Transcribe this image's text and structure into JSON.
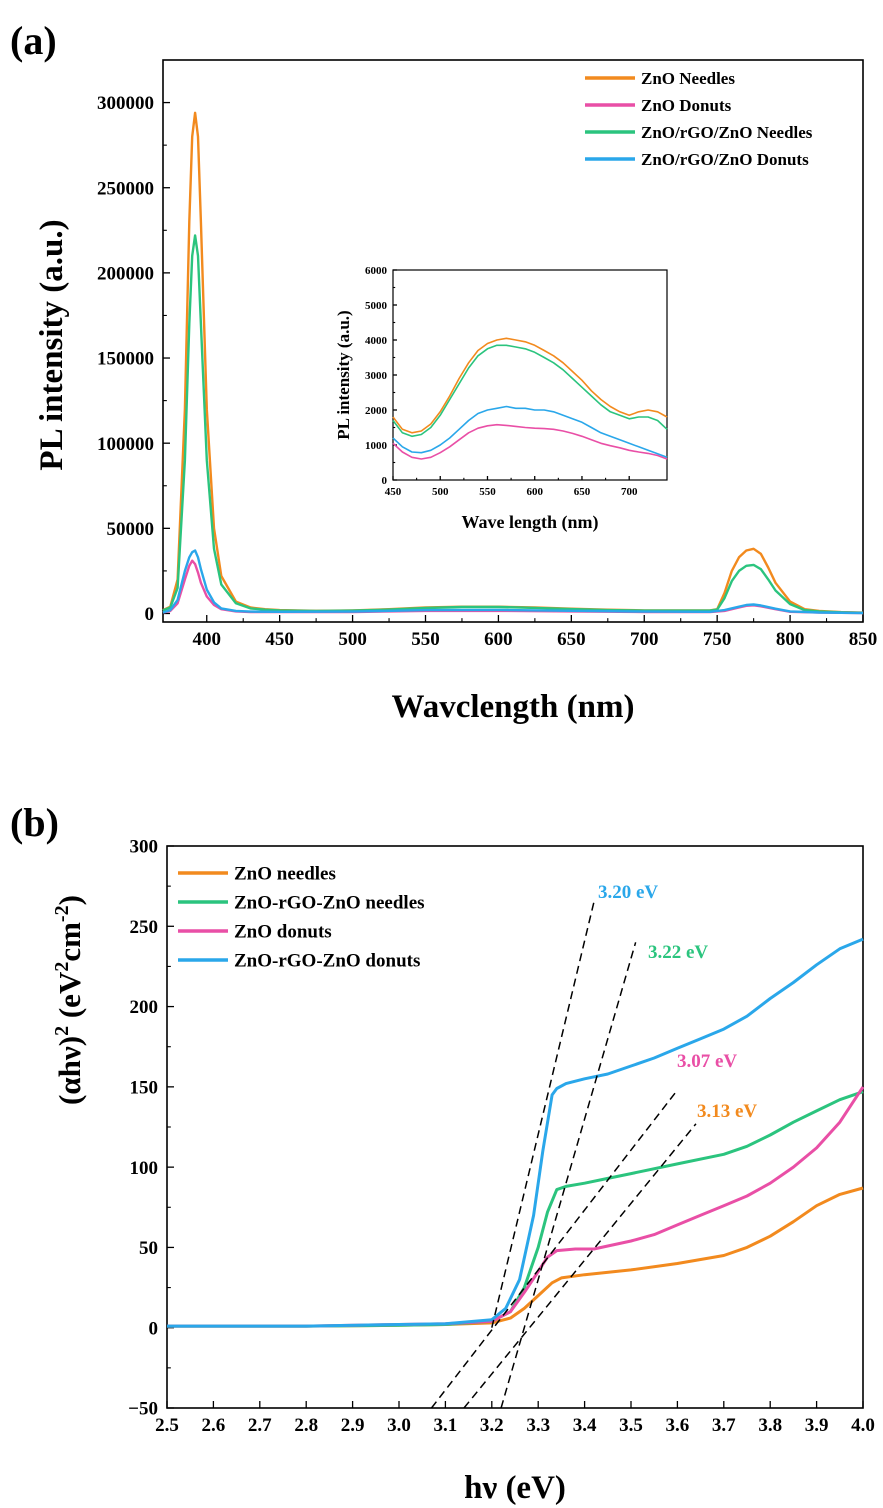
{
  "panel_a": {
    "label": "(a)",
    "chart_data": {
      "type": "line",
      "xlabel": "Wavclength (nm)",
      "ylabel": "PL intensity (a.u.)",
      "xlim": [
        370,
        850
      ],
      "ylim": [
        -5000,
        325000
      ],
      "xticks": [
        400,
        450,
        500,
        550,
        600,
        650,
        700,
        750,
        800,
        850
      ],
      "yticks": [
        0,
        50000,
        100000,
        150000,
        200000,
        250000,
        300000
      ],
      "legend_position": "top-right",
      "series": [
        {
          "name": "ZnO Needles",
          "color": "#f28a1e",
          "x": [
            370,
            375,
            380,
            385,
            388,
            390,
            392,
            394,
            396,
            400,
            405,
            410,
            420,
            430,
            440,
            450,
            475,
            500,
            525,
            550,
            575,
            600,
            625,
            650,
            675,
            700,
            725,
            745,
            750,
            755,
            760,
            765,
            770,
            775,
            780,
            785,
            790,
            800,
            810,
            820,
            835,
            850
          ],
          "y": [
            2000,
            4000,
            20000,
            120000,
            230000,
            280000,
            294000,
            280000,
            230000,
            120000,
            50000,
            22000,
            7000,
            3500,
            2500,
            2000,
            1600,
            1800,
            2500,
            3500,
            4000,
            4000,
            3500,
            2800,
            2200,
            1800,
            1800,
            1800,
            2500,
            12000,
            25000,
            33000,
            37000,
            38000,
            35000,
            27000,
            18000,
            7000,
            2500,
            1500,
            800,
            500
          ]
        },
        {
          "name": "ZnO Donuts",
          "color": "#e94fa6",
          "x": [
            370,
            375,
            380,
            385,
            388,
            390,
            392,
            394,
            396,
            400,
            405,
            410,
            420,
            430,
            450,
            500,
            550,
            600,
            650,
            700,
            745,
            755,
            765,
            770,
            775,
            780,
            790,
            800,
            820,
            850
          ],
          "y": [
            500,
            1500,
            6000,
            20000,
            28000,
            31000,
            29000,
            24000,
            18000,
            10000,
            5000,
            2500,
            1200,
            900,
            800,
            900,
            1500,
            1500,
            1200,
            900,
            800,
            1500,
            3500,
            4500,
            4800,
            4200,
            2500,
            1000,
            500,
            300
          ]
        },
        {
          "name": "ZnO/rGO/ZnO Needles",
          "color": "#2bc47e",
          "x": [
            370,
            375,
            380,
            385,
            388,
            390,
            392,
            394,
            396,
            400,
            405,
            410,
            420,
            430,
            440,
            450,
            475,
            500,
            525,
            550,
            575,
            600,
            625,
            650,
            675,
            700,
            725,
            745,
            750,
            755,
            760,
            765,
            770,
            775,
            780,
            785,
            790,
            800,
            810,
            820,
            835,
            850
          ],
          "y": [
            1800,
            3500,
            15000,
            90000,
            170000,
            210000,
            222000,
            210000,
            170000,
            90000,
            38000,
            17000,
            6000,
            3000,
            2200,
            1800,
            1500,
            1700,
            2300,
            3200,
            3800,
            3800,
            3300,
            2600,
            2000,
            1700,
            1700,
            1700,
            2300,
            9000,
            19000,
            25000,
            28000,
            28500,
            26000,
            20000,
            13500,
            5500,
            2000,
            1200,
            700,
            400
          ]
        },
        {
          "name": "ZnO/rGO/ZnO Donuts",
          "color": "#2aa7ea",
          "x": [
            370,
            375,
            380,
            385,
            388,
            390,
            392,
            394,
            396,
            400,
            405,
            410,
            420,
            430,
            450,
            500,
            550,
            600,
            650,
            700,
            745,
            755,
            765,
            770,
            775,
            780,
            790,
            800,
            820,
            850
          ],
          "y": [
            600,
            2000,
            8000,
            25000,
            33000,
            36000,
            37000,
            33000,
            26000,
            14000,
            6500,
            3000,
            1500,
            1100,
            1000,
            1100,
            2000,
            2100,
            1600,
            1100,
            1000,
            2000,
            4000,
            5000,
            5300,
            4700,
            2800,
            1200,
            600,
            300
          ]
        }
      ]
    },
    "inset": {
      "chart_data": {
        "type": "line",
        "xlabel": "Wave length (nm)",
        "ylabel": "PL intensity (a.u.)",
        "xlim": [
          450,
          740
        ],
        "ylim": [
          0,
          6000
        ],
        "xticks": [
          450,
          500,
          550,
          600,
          650,
          700
        ],
        "yticks": [
          0,
          1000,
          2000,
          3000,
          4000,
          5000,
          6000
        ],
        "series": [
          {
            "name": "ZnO Needles",
            "color": "#f28a1e",
            "x": [
              450,
              460,
              470,
              480,
              490,
              500,
              510,
              520,
              530,
              540,
              550,
              560,
              570,
              580,
              590,
              600,
              610,
              620,
              630,
              640,
              650,
              660,
              670,
              680,
              690,
              700,
              710,
              720,
              730,
              740
            ],
            "y": [
              1800,
              1450,
              1350,
              1400,
              1600,
              1950,
              2400,
              2900,
              3350,
              3700,
              3900,
              4000,
              4050,
              4000,
              3950,
              3850,
              3700,
              3550,
              3350,
              3100,
              2850,
              2550,
              2300,
              2100,
              1950,
              1850,
              1950,
              2000,
              1950,
              1800
            ]
          },
          {
            "name": "ZnO Donuts",
            "color": "#e94fa6",
            "x": [
              450,
              460,
              470,
              480,
              490,
              500,
              510,
              520,
              530,
              540,
              550,
              560,
              570,
              580,
              590,
              600,
              610,
              620,
              630,
              640,
              650,
              660,
              670,
              680,
              690,
              700,
              710,
              720,
              730,
              740
            ],
            "y": [
              1050,
              800,
              650,
              600,
              650,
              780,
              950,
              1150,
              1350,
              1480,
              1550,
              1580,
              1560,
              1530,
              1500,
              1480,
              1470,
              1450,
              1400,
              1330,
              1250,
              1150,
              1050,
              980,
              920,
              850,
              800,
              760,
              700,
              600
            ]
          },
          {
            "name": "ZnO/rGO/ZnO Needles",
            "color": "#2bc47e",
            "x": [
              450,
              460,
              470,
              480,
              490,
              500,
              510,
              520,
              530,
              540,
              550,
              560,
              570,
              580,
              590,
              600,
              610,
              620,
              630,
              640,
              650,
              660,
              670,
              680,
              690,
              700,
              710,
              720,
              730,
              740
            ],
            "y": [
              1700,
              1350,
              1250,
              1300,
              1500,
              1850,
              2300,
              2750,
              3200,
              3550,
              3750,
              3850,
              3850,
              3800,
              3750,
              3650,
              3500,
              3350,
              3150,
              2900,
              2650,
              2400,
              2150,
              1950,
              1850,
              1750,
              1800,
              1800,
              1700,
              1450
            ]
          },
          {
            "name": "ZnO/rGO/ZnO Donuts",
            "color": "#2aa7ea",
            "x": [
              450,
              460,
              470,
              480,
              490,
              500,
              510,
              520,
              530,
              540,
              550,
              560,
              570,
              580,
              590,
              600,
              610,
              620,
              630,
              640,
              650,
              660,
              670,
              680,
              690,
              700,
              710,
              720,
              730,
              740
            ],
            "y": [
              1200,
              950,
              800,
              780,
              850,
              1000,
              1200,
              1450,
              1700,
              1900,
              2000,
              2050,
              2100,
              2050,
              2050,
              2000,
              2000,
              1950,
              1850,
              1750,
              1650,
              1500,
              1350,
              1250,
              1150,
              1050,
              950,
              850,
              750,
              650
            ]
          }
        ]
      }
    }
  },
  "panel_b": {
    "label": "(b)",
    "chart_data": {
      "type": "line",
      "xlabel": "hν (eV)",
      "ylabel_main": "(αhν)",
      "ylabel_sup1": "2",
      "ylabel_mid": " (eV",
      "ylabel_sup2": "2",
      "ylabel_cm": "cm",
      "ylabel_sup3": "-2",
      "ylabel_end": ")",
      "xlim": [
        2.5,
        4.0
      ],
      "ylim": [
        -50,
        300
      ],
      "xticks": [
        2.5,
        2.6,
        2.7,
        2.8,
        2.9,
        3.0,
        3.1,
        3.2,
        3.3,
        3.4,
        3.5,
        3.6,
        3.7,
        3.8,
        3.9,
        4.0
      ],
      "yticks": [
        -50,
        0,
        50,
        100,
        150,
        200,
        250,
        300
      ],
      "legend_position": "top-left",
      "series": [
        {
          "name": "ZnO needles",
          "color": "#f28a1e",
          "x": [
            2.5,
            2.8,
            3.0,
            3.1,
            3.2,
            3.24,
            3.27,
            3.3,
            3.33,
            3.35,
            3.4,
            3.5,
            3.6,
            3.7,
            3.75,
            3.8,
            3.85,
            3.9,
            3.95,
            4.0
          ],
          "y": [
            1,
            1,
            1.5,
            2,
            3,
            6,
            12,
            20,
            28,
            31,
            33,
            36,
            40,
            45,
            50,
            57,
            66,
            76,
            83,
            87
          ]
        },
        {
          "name": "ZnO-rGO-ZnO needles",
          "color": "#2bc47e",
          "x": [
            2.5,
            2.8,
            3.0,
            3.1,
            3.2,
            3.24,
            3.27,
            3.3,
            3.32,
            3.34,
            3.36,
            3.4,
            3.45,
            3.5,
            3.6,
            3.7,
            3.75,
            3.8,
            3.85,
            3.9,
            3.95,
            4.0
          ],
          "y": [
            1,
            1,
            1.5,
            2,
            4,
            10,
            25,
            50,
            72,
            86,
            88,
            90,
            93,
            96,
            102,
            108,
            113,
            120,
            128,
            135,
            142,
            147
          ]
        },
        {
          "name": "ZnO donuts",
          "color": "#e94fa6",
          "x": [
            2.5,
            2.8,
            3.0,
            3.1,
            3.2,
            3.24,
            3.27,
            3.3,
            3.32,
            3.34,
            3.38,
            3.42,
            3.5,
            3.55,
            3.6,
            3.65,
            3.7,
            3.75,
            3.8,
            3.85,
            3.9,
            3.95,
            4.0
          ],
          "y": [
            1,
            1,
            2,
            2.5,
            4,
            10,
            22,
            35,
            44,
            48,
            49,
            49,
            54,
            58,
            64,
            70,
            76,
            82,
            90,
            100,
            112,
            128,
            150
          ]
        },
        {
          "name": "ZnO-rGO-ZnO donuts",
          "color": "#2aa7ea",
          "x": [
            2.5,
            2.8,
            3.0,
            3.1,
            3.2,
            3.23,
            3.26,
            3.29,
            3.31,
            3.33,
            3.34,
            3.36,
            3.4,
            3.45,
            3.5,
            3.55,
            3.6,
            3.65,
            3.7,
            3.75,
            3.8,
            3.85,
            3.9,
            3.95,
            4.0
          ],
          "y": [
            1,
            1,
            2,
            2.5,
            5,
            12,
            30,
            70,
            110,
            145,
            149,
            152,
            155,
            158,
            163,
            168,
            174,
            180,
            186,
            194,
            205,
            215,
            226,
            236,
            242
          ]
        }
      ],
      "tangents": [
        {
          "label": "3.20 eV",
          "color": "#2aa7ea",
          "x": [
            3.2,
            3.42
          ],
          "y": [
            0,
            265
          ]
        },
        {
          "label": "3.22 eV",
          "color": "#2bc47e",
          "x": [
            3.22,
            3.51
          ],
          "y": [
            -50,
            240
          ]
        },
        {
          "label": "3.07 eV",
          "color": "#e94fa6",
          "x": [
            3.07,
            3.6
          ],
          "y": [
            -50,
            148
          ]
        },
        {
          "label": "3.13 eV",
          "color": "#f28a1e",
          "x": [
            3.14,
            3.64
          ],
          "y": [
            -50,
            127
          ]
        }
      ]
    }
  }
}
